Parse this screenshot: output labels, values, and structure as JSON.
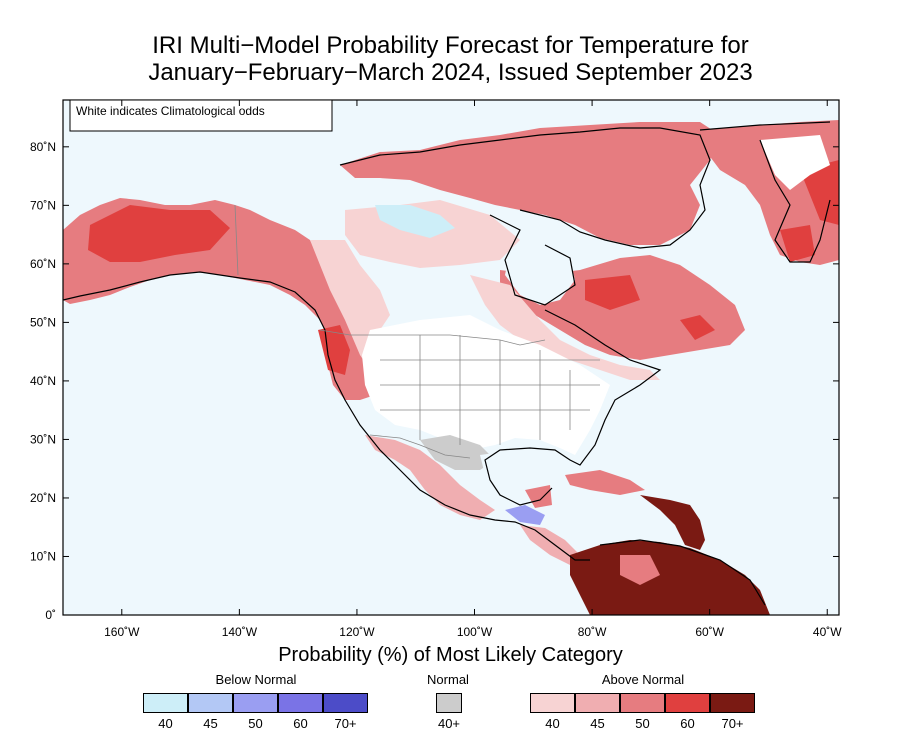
{
  "title_line1": "IRI Multi−Model Probability Forecast for Temperature for",
  "title_line2": "January−February−March 2024, Issued September 2023",
  "note": "White indicates Climatological odds",
  "lat_labels": [
    "80˚N",
    "70˚N",
    "60˚N",
    "50˚N",
    "40˚N",
    "30˚N",
    "20˚N",
    "10˚N",
    "0˚"
  ],
  "lon_labels": [
    "160˚W",
    "140˚W",
    "120˚W",
    "100˚W",
    "80˚W",
    "60˚W",
    "40˚W"
  ],
  "map_extent": {
    "lon_min": -170,
    "lon_max": -38,
    "lat_min": 0,
    "lat_max": 88
  },
  "colorbar_title": "Probability (%) of Most Likely Category",
  "legend": {
    "below": {
      "title": "Below Normal",
      "labels": [
        "40",
        "45",
        "50",
        "60",
        "70+"
      ],
      "colors": [
        "#cdeef8",
        "#b3c8f5",
        "#9a9ef2",
        "#7a73e6",
        "#4c4cc8"
      ]
    },
    "normal": {
      "title": "Normal",
      "labels": [
        "40+"
      ],
      "colors": [
        "#cccccc"
      ]
    },
    "above": {
      "title": "Above Normal",
      "labels": [
        "40",
        "45",
        "50",
        "60",
        "70+"
      ],
      "colors": [
        "#f7d3d3",
        "#f0aeb1",
        "#e67c80",
        "#e0403f",
        "#7a1a13"
      ]
    }
  },
  "colors": {
    "ocean": "#eef8fd",
    "land_clim": "#ffffff"
  }
}
